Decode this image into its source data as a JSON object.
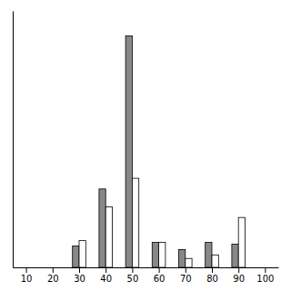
{
  "chart_data": {
    "type": "bar",
    "x": [
      10,
      20,
      30,
      40,
      50,
      60,
      70,
      80,
      90,
      100
    ],
    "series": [
      {
        "color": "#888888",
        "values": [
          0.0,
          0.0,
          6.0,
          22.0,
          65.0,
          7.0,
          5.0,
          7.0,
          6.5,
          0.0
        ]
      },
      {
        "color": "#ffffff",
        "values": [
          0.0,
          0.0,
          7.5,
          17.0,
          25.0,
          7.0,
          2.5,
          3.5,
          14.0,
          0.0
        ]
      }
    ],
    "xlim": [
      5,
      105
    ],
    "xticks": [
      10,
      20,
      30,
      40,
      50,
      60,
      70,
      80,
      90,
      100
    ],
    "ylim": [
      0,
      72
    ],
    "grid": false,
    "tick_labels": "x"
  }
}
